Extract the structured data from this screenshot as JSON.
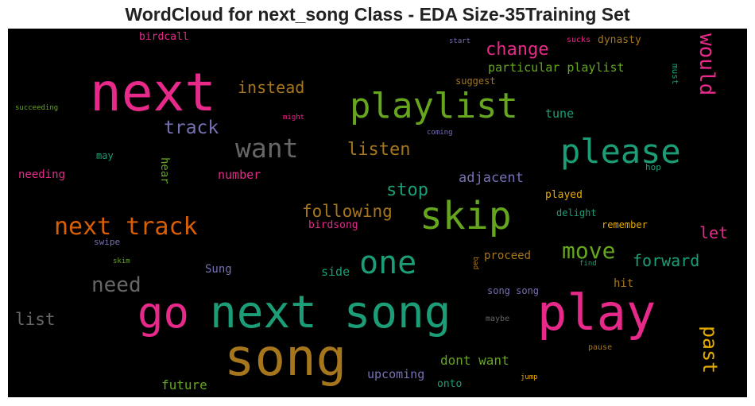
{
  "title": "WordCloud for next_song Class - EDA Size-35Training Set",
  "words": [
    {
      "id": "birdcall",
      "text": "birdcall",
      "color": "#e7298a"
    },
    {
      "id": "start",
      "text": "start",
      "color": "#7570b3"
    },
    {
      "id": "sucks",
      "text": "sucks",
      "color": "#e7298a"
    },
    {
      "id": "dynasty",
      "text": "dynasty",
      "color": "#a6761d"
    },
    {
      "id": "change",
      "text": "change",
      "color": "#e7298a"
    },
    {
      "id": "would",
      "text": "would",
      "color": "#e7298a"
    },
    {
      "id": "must",
      "text": "must",
      "color": "#1b9e77"
    },
    {
      "id": "next",
      "text": "next",
      "color": "#e7298a"
    },
    {
      "id": "particular-playlist",
      "text": "particular playlist",
      "color": "#66a61e"
    },
    {
      "id": "suggest",
      "text": "suggest",
      "color": "#a6761d"
    },
    {
      "id": "instead",
      "text": "instead",
      "color": "#a6761d"
    },
    {
      "id": "playlist",
      "text": "playlist",
      "color": "#66a61e"
    },
    {
      "id": "succeeding",
      "text": "succeeding",
      "color": "#66a61e"
    },
    {
      "id": "might",
      "text": "might",
      "color": "#e7298a"
    },
    {
      "id": "tune",
      "text": "tune",
      "color": "#1b9e77"
    },
    {
      "id": "track",
      "text": "track",
      "color": "#7570b3"
    },
    {
      "id": "coming",
      "text": "coming",
      "color": "#7570b3"
    },
    {
      "id": "want",
      "text": "want",
      "color": "#666666"
    },
    {
      "id": "please",
      "text": "please",
      "color": "#1b9e77"
    },
    {
      "id": "listen",
      "text": "listen",
      "color": "#a6761d"
    },
    {
      "id": "may",
      "text": "may",
      "color": "#1b9e77"
    },
    {
      "id": "hear",
      "text": "hear",
      "color": "#66a61e"
    },
    {
      "id": "hop",
      "text": "hop",
      "color": "#1b9e77"
    },
    {
      "id": "needing",
      "text": "needing",
      "color": "#e7298a"
    },
    {
      "id": "number",
      "text": "number",
      "color": "#e7298a"
    },
    {
      "id": "adjacent",
      "text": "adjacent",
      "color": "#7570b3"
    },
    {
      "id": "stop",
      "text": "stop",
      "color": "#1b9e77"
    },
    {
      "id": "played",
      "text": "played",
      "color": "#e6ab02"
    },
    {
      "id": "skip",
      "text": "skip",
      "color": "#66a61e"
    },
    {
      "id": "following",
      "text": "following",
      "color": "#a6761d"
    },
    {
      "id": "delight",
      "text": "delight",
      "color": "#1b9e77"
    },
    {
      "id": "next-track",
      "text": "next track",
      "color": "#d95f02"
    },
    {
      "id": "birdsong",
      "text": "birdsong",
      "color": "#e7298a"
    },
    {
      "id": "remember",
      "text": "remember",
      "color": "#e6ab02"
    },
    {
      "id": "let",
      "text": "let",
      "color": "#e7298a"
    },
    {
      "id": "swipe",
      "text": "swipe",
      "color": "#7570b3"
    },
    {
      "id": "move",
      "text": "move",
      "color": "#66a61e"
    },
    {
      "id": "one",
      "text": "one",
      "color": "#1b9e77"
    },
    {
      "id": "forward",
      "text": "forward",
      "color": "#1b9e77"
    },
    {
      "id": "skim",
      "text": "skim",
      "color": "#66a61e"
    },
    {
      "id": "bad",
      "text": "bad",
      "color": "#a6761d"
    },
    {
      "id": "proceed",
      "text": "proceed",
      "color": "#a6761d"
    },
    {
      "id": "find",
      "text": "find",
      "color": "#1b9e77"
    },
    {
      "id": "sung",
      "text": "Sung",
      "color": "#7570b3"
    },
    {
      "id": "side",
      "text": "side",
      "color": "#1b9e77"
    },
    {
      "id": "need",
      "text": "need",
      "color": "#666666"
    },
    {
      "id": "hit",
      "text": "hit",
      "color": "#a6761d"
    },
    {
      "id": "go",
      "text": "go",
      "color": "#e7298a"
    },
    {
      "id": "next-song",
      "text": "next song",
      "color": "#1b9e77"
    },
    {
      "id": "play",
      "text": "play",
      "color": "#e7298a"
    },
    {
      "id": "song-song",
      "text": "song song",
      "color": "#7570b3"
    },
    {
      "id": "list",
      "text": "list",
      "color": "#666666"
    },
    {
      "id": "maybe",
      "text": "maybe",
      "color": "#666666"
    },
    {
      "id": "past",
      "text": "past",
      "color": "#e6ab02"
    },
    {
      "id": "song",
      "text": "song",
      "color": "#a6761d"
    },
    {
      "id": "pause",
      "text": "pause",
      "color": "#a6761d"
    },
    {
      "id": "dont-want",
      "text": "dont want",
      "color": "#66a61e"
    },
    {
      "id": "upcoming",
      "text": "upcoming",
      "color": "#7570b3"
    },
    {
      "id": "jump",
      "text": "jump",
      "color": "#e6ab02"
    },
    {
      "id": "future",
      "text": "future",
      "color": "#66a61e"
    },
    {
      "id": "onto",
      "text": "onto",
      "color": "#1b9e77"
    }
  ]
}
